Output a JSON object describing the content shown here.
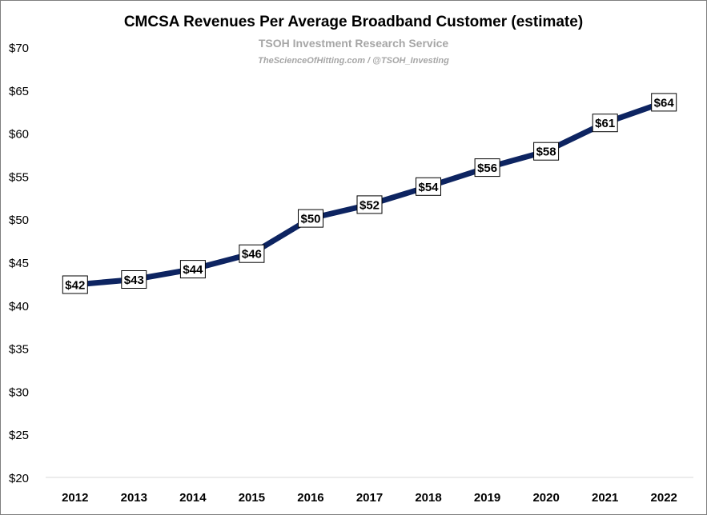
{
  "chart_data": {
    "type": "line",
    "title": "CMCSA Revenues Per Average Broadband Customer (estimate)",
    "subtitle": "TSOH Investment Research Service",
    "credit": "TheScienceOfHitting.com / @TSOH_Investing",
    "x": [
      "2012",
      "2013",
      "2014",
      "2015",
      "2016",
      "2017",
      "2018",
      "2019",
      "2020",
      "2021",
      "2022"
    ],
    "series": [
      {
        "values": [
          42.4,
          43.0,
          44.2,
          46.0,
          50.1,
          51.7,
          53.8,
          56.0,
          57.9,
          61.2,
          63.6
        ],
        "data_labels": [
          "$42",
          "$43",
          "$44",
          "$46",
          "$50",
          "$52",
          "$54",
          "$56",
          "$58",
          "$61",
          "$64"
        ],
        "color": "#0d2461"
      }
    ],
    "ylim": [
      20,
      70
    ],
    "yticks": [
      20,
      25,
      30,
      35,
      40,
      45,
      50,
      55,
      60,
      65,
      70
    ],
    "ytick_labels": [
      "$20",
      "$25",
      "$30",
      "$35",
      "$40",
      "$45",
      "$50",
      "$55",
      "$60",
      "$65",
      "$70"
    ],
    "xlabel": "",
    "ylabel": "",
    "grid": false,
    "legend": "none"
  }
}
